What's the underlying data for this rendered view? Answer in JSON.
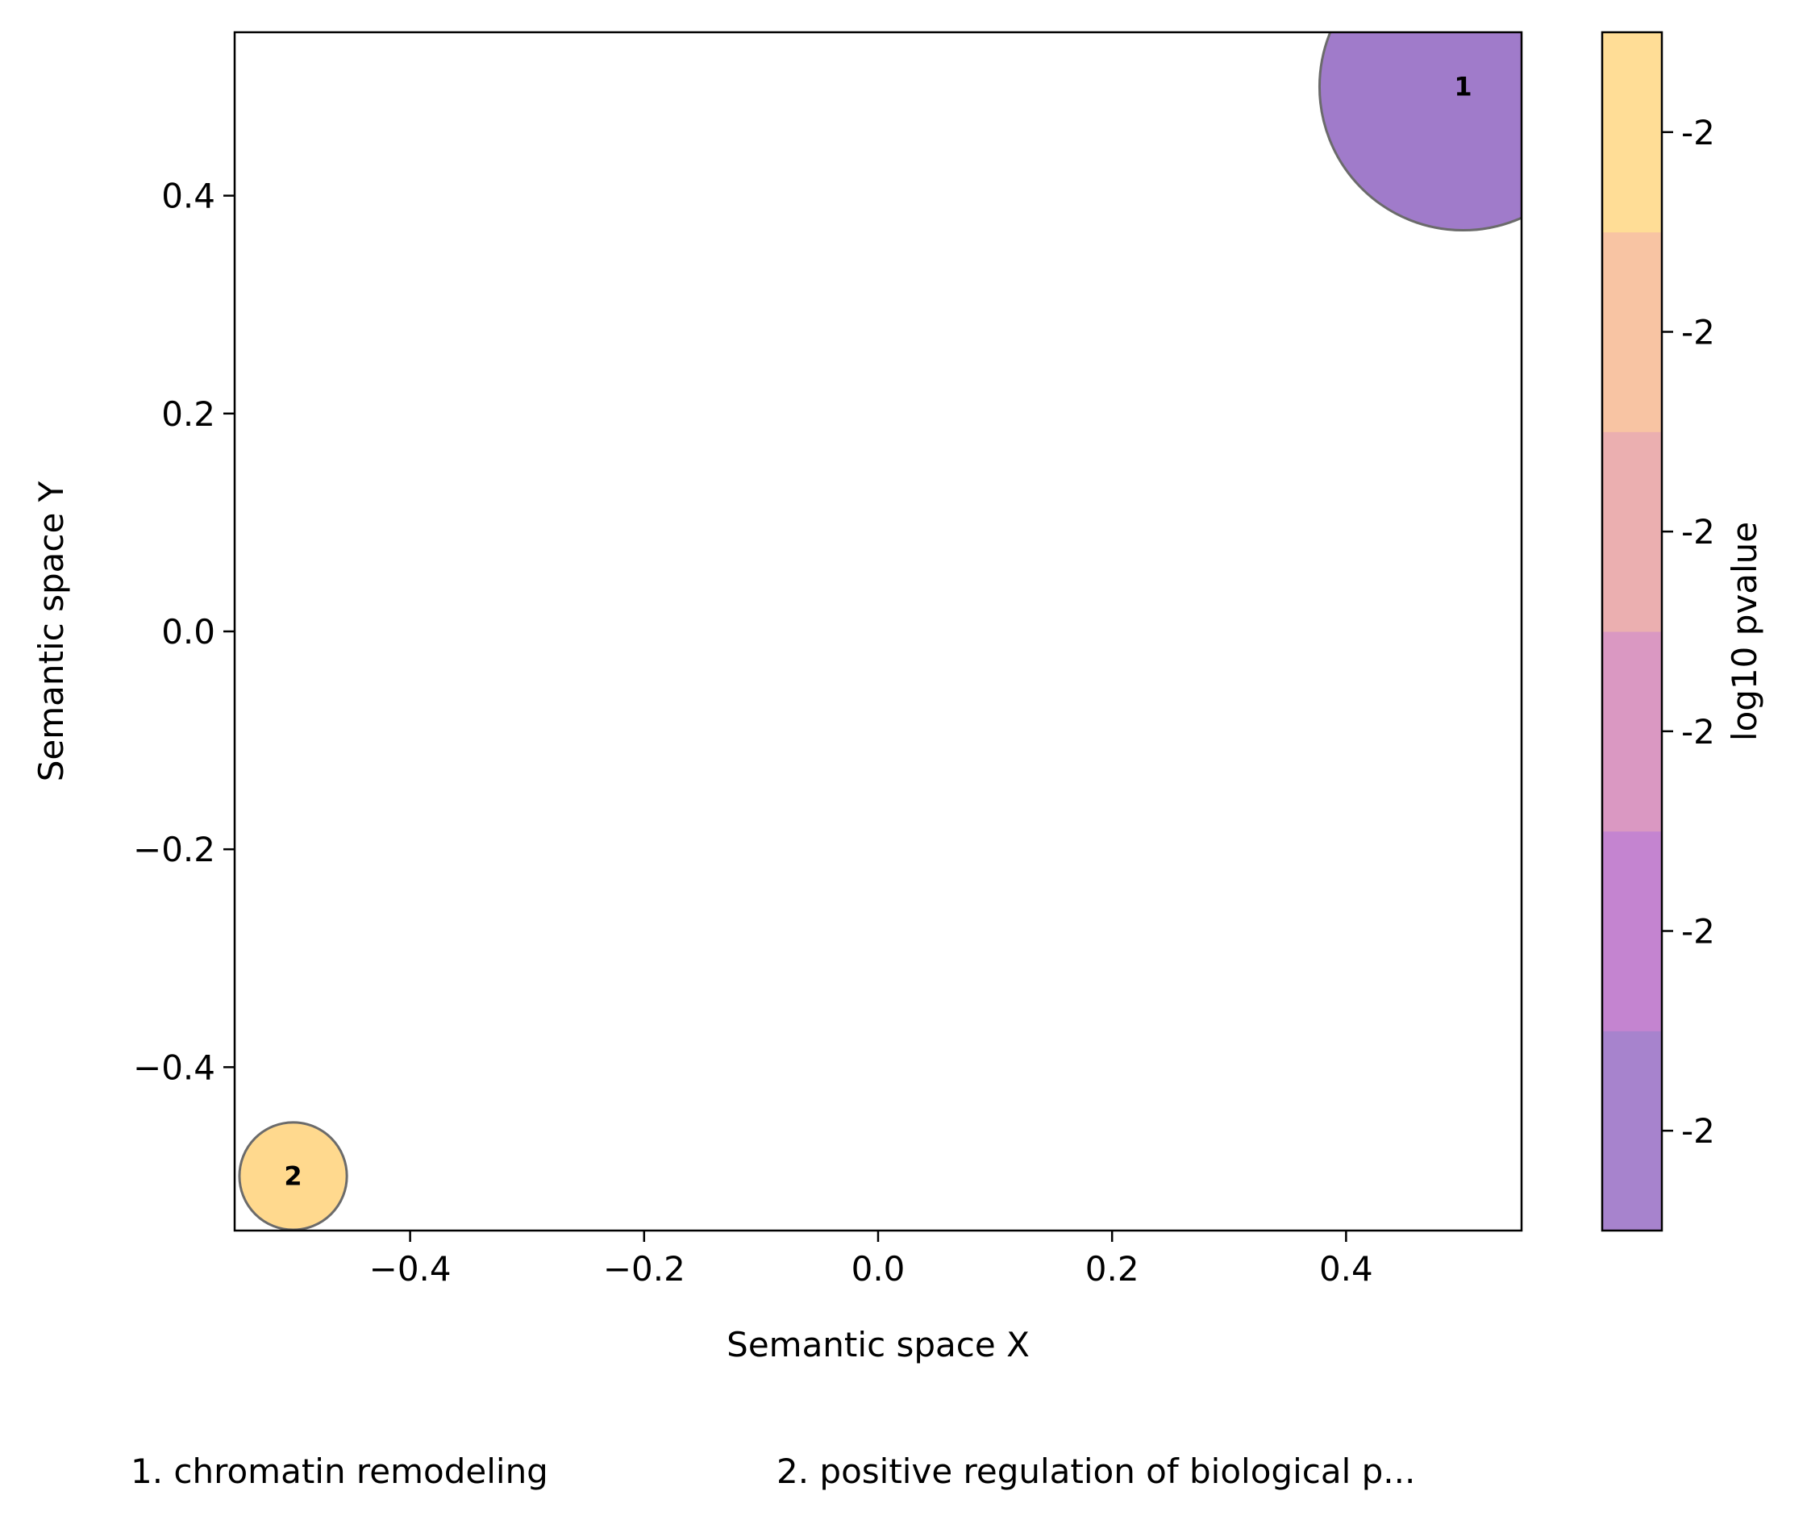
{
  "chart_data": {
    "type": "scatter",
    "xlabel": "Semantic space X",
    "ylabel": "Semantic space Y",
    "xlim": [
      -0.55,
      0.55
    ],
    "ylim": [
      -0.55,
      0.55
    ],
    "xticks": [
      "−0.4",
      "−0.2",
      "0.0",
      "0.2",
      "0.4"
    ],
    "xtick_values": [
      -0.4,
      -0.2,
      0.0,
      0.2,
      0.4
    ],
    "yticks": [
      "−0.4",
      "−0.2",
      "0.0",
      "0.2",
      "0.4"
    ],
    "ytick_values": [
      -0.4,
      -0.2,
      0.0,
      0.2,
      0.4
    ],
    "points": [
      {
        "id": "1",
        "x": 0.5,
        "y": 0.5,
        "relative_size": 1.0,
        "color": "#a07bca"
      },
      {
        "id": "2",
        "x": -0.5,
        "y": -0.5,
        "relative_size": 0.14,
        "color": "#ffd98e"
      }
    ],
    "colorbar": {
      "label": "log10 pvalue",
      "tick_labels": [
        "-2",
        "-2",
        "-2",
        "-2",
        "-2",
        "-2"
      ],
      "colors": [
        "#a783cd",
        "#c484d0",
        "#da98c2",
        "#ebafb0",
        "#f8c4a3",
        "#ffdd96"
      ]
    },
    "legend": [
      "1. chromatin remodeling",
      "2. positive regulation of biological p..."
    ]
  }
}
